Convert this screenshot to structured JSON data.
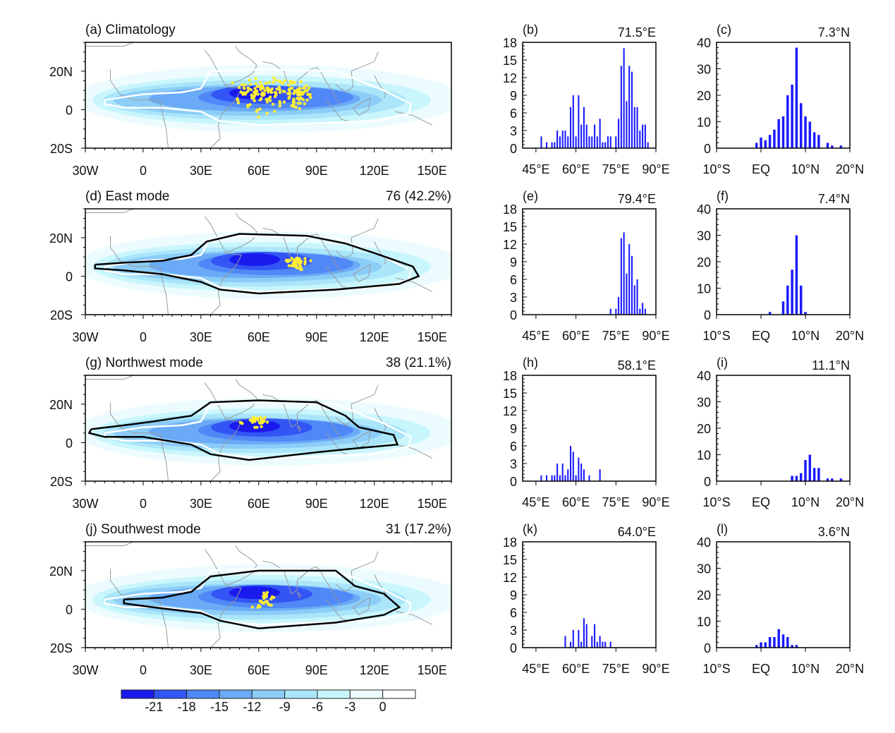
{
  "colors": {
    "bar": "#1a1aff",
    "dots": "#ffee33",
    "coast": "#999999",
    "clim_contour": "#ffffff",
    "mode_contour": "#000000"
  },
  "map_axes": {
    "lon_ticks": [
      {
        "v": -30,
        "label": "30W"
      },
      {
        "v": 0,
        "label": "0"
      },
      {
        "v": 30,
        "label": "30E"
      },
      {
        "v": 60,
        "label": "60E"
      },
      {
        "v": 90,
        "label": "90E"
      },
      {
        "v": 120,
        "label": "120E"
      },
      {
        "v": 150,
        "label": "150E"
      }
    ],
    "lat_ticks": [
      {
        "v": 20,
        "label": "20N"
      },
      {
        "v": 0,
        "label": "0"
      },
      {
        "v": -20,
        "label": "20S"
      }
    ],
    "xlim": [
      -30,
      160
    ],
    "ylim": [
      -20,
      35
    ]
  },
  "colorbar": {
    "labels": [
      "-21",
      "-18",
      "-15",
      "-12",
      "-9",
      "-6",
      "-3",
      "0"
    ],
    "colors": [
      "#1a1aee",
      "#3355f5",
      "#5088f7",
      "#6aaaf7",
      "#8ccdf8",
      "#aae5fa",
      "#c8f6fc",
      "#ecfcfe",
      "#ffffff"
    ]
  },
  "chart_data": [
    {
      "type": "heatmap",
      "title": "(a) Climatology",
      "right_label": ""
    },
    {
      "type": "bar",
      "title": "(b)",
      "right_label": "71.5°E",
      "xlim": [
        40,
        90
      ],
      "ylim": [
        0,
        18
      ],
      "yticks": [
        "0",
        "3",
        "6",
        "9",
        "12",
        "15",
        "18"
      ],
      "xticks": [
        {
          "v": 45,
          "label": "45°E"
        },
        {
          "v": 60,
          "label": "60°E"
        },
        {
          "v": 75,
          "label": "75°E"
        },
        {
          "v": 90,
          "label": "90°E"
        }
      ],
      "x": [
        47,
        49,
        51,
        52,
        53,
        54,
        55,
        56,
        57,
        58,
        59,
        60,
        61,
        62,
        63,
        64,
        65,
        66,
        67,
        68,
        69,
        70,
        71,
        72,
        73,
        75,
        76,
        77,
        78,
        79,
        80,
        81,
        82,
        83,
        84,
        85,
        86,
        87
      ],
      "values": [
        2,
        1,
        1,
        1,
        3,
        2,
        3,
        3,
        2,
        7,
        9,
        2,
        9,
        4,
        7,
        4,
        2,
        2,
        4,
        2,
        5,
        1,
        1,
        2,
        2,
        2,
        5,
        14,
        17,
        8,
        14,
        13,
        7,
        7,
        3,
        4,
        4,
        1
      ]
    },
    {
      "type": "bar",
      "title": "(c)",
      "right_label": "7.3°N",
      "xlim": [
        -10,
        20
      ],
      "ylim": [
        0,
        40
      ],
      "yticks": [
        "0",
        "10",
        "20",
        "30",
        "40"
      ],
      "xticks": [
        {
          "v": -10,
          "label": "10°S"
        },
        {
          "v": 0,
          "label": "EQ"
        },
        {
          "v": 10,
          "label": "10°N"
        },
        {
          "v": 20,
          "label": "20°N"
        }
      ],
      "x": [
        -1,
        0,
        1,
        2,
        3,
        4,
        5,
        6,
        7,
        8,
        9,
        10,
        11,
        12,
        13,
        15,
        16,
        18
      ],
      "values": [
        2,
        4,
        3,
        5,
        7,
        11,
        12,
        20,
        24,
        38,
        17,
        12,
        10,
        6,
        5,
        2,
        1,
        1
      ]
    },
    {
      "type": "heatmap",
      "title": "(d) East mode",
      "right_label": "76 (42.2%)"
    },
    {
      "type": "bar",
      "title": "(e)",
      "right_label": "79.4°E",
      "xlim": [
        40,
        90
      ],
      "ylim": [
        0,
        18
      ],
      "yticks": [
        "0",
        "3",
        "6",
        "9",
        "12",
        "15",
        "18"
      ],
      "xticks": [
        {
          "v": 45,
          "label": "45°E"
        },
        {
          "v": 60,
          "label": "60°E"
        },
        {
          "v": 75,
          "label": "75°E"
        },
        {
          "v": 90,
          "label": "90°E"
        }
      ],
      "x": [
        73,
        75,
        76,
        77,
        78,
        79,
        80,
        81,
        82,
        83,
        84,
        85,
        86
      ],
      "values": [
        1,
        1,
        3,
        13,
        14,
        7,
        12,
        10,
        5,
        6,
        1,
        2,
        1
      ]
    },
    {
      "type": "bar",
      "title": "(f)",
      "right_label": "7.4°N",
      "xlim": [
        -10,
        20
      ],
      "ylim": [
        0,
        40
      ],
      "yticks": [
        "0",
        "10",
        "20",
        "30",
        "40"
      ],
      "xticks": [
        {
          "v": -10,
          "label": "10°S"
        },
        {
          "v": 0,
          "label": "EQ"
        },
        {
          "v": 10,
          "label": "10°N"
        },
        {
          "v": 20,
          "label": "20°N"
        }
      ],
      "x": [
        2,
        5,
        6,
        7,
        8,
        9,
        10
      ],
      "values": [
        1,
        5,
        11,
        17,
        30,
        11,
        1
      ]
    },
    {
      "type": "heatmap",
      "title": "(g) Northwest mode",
      "right_label": "38 (21.1%)"
    },
    {
      "type": "bar",
      "title": "(h)",
      "right_label": "58.1°E",
      "xlim": [
        40,
        90
      ],
      "ylim": [
        0,
        18
      ],
      "yticks": [
        "0",
        "3",
        "6",
        "9",
        "12",
        "15",
        "18"
      ],
      "xticks": [
        {
          "v": 45,
          "label": "45°E"
        },
        {
          "v": 60,
          "label": "60°E"
        },
        {
          "v": 75,
          "label": "75°E"
        },
        {
          "v": 90,
          "label": "90°E"
        }
      ],
      "x": [
        47,
        49,
        51,
        52,
        53,
        54,
        55,
        56,
        57,
        58,
        59,
        60,
        61,
        62,
        63,
        65,
        69
      ],
      "values": [
        1,
        1,
        1,
        1,
        3,
        1,
        3,
        1,
        2,
        6,
        5,
        1,
        4,
        3,
        2,
        1,
        2
      ]
    },
    {
      "type": "bar",
      "title": "(i)",
      "right_label": "11.1°N",
      "xlim": [
        -10,
        20
      ],
      "ylim": [
        0,
        40
      ],
      "yticks": [
        "0",
        "10",
        "20",
        "30",
        "40"
      ],
      "xticks": [
        {
          "v": -10,
          "label": "10°S"
        },
        {
          "v": 0,
          "label": "EQ"
        },
        {
          "v": 10,
          "label": "10°N"
        },
        {
          "v": 20,
          "label": "20°N"
        }
      ],
      "x": [
        7,
        8,
        9,
        10,
        11,
        12,
        13,
        15,
        16,
        18
      ],
      "values": [
        2,
        2,
        3,
        8,
        10,
        5,
        5,
        1,
        1,
        1
      ]
    },
    {
      "type": "heatmap",
      "title": "(j) Southwest mode",
      "right_label": "31 (17.2%)"
    },
    {
      "type": "bar",
      "title": "(k)",
      "right_label": "64.0°E",
      "xlim": [
        40,
        90
      ],
      "ylim": [
        0,
        18
      ],
      "yticks": [
        "0",
        "3",
        "6",
        "9",
        "12",
        "15",
        "18"
      ],
      "xticks": [
        {
          "v": 45,
          "label": "45°E"
        },
        {
          "v": 60,
          "label": "60°E"
        },
        {
          "v": 75,
          "label": "75°E"
        },
        {
          "v": 90,
          "label": "90°E"
        }
      ],
      "x": [
        56,
        58,
        59,
        61,
        62,
        63,
        64,
        66,
        67,
        68,
        69,
        70,
        71,
        73
      ],
      "values": [
        2,
        1,
        3,
        3,
        1,
        5,
        4,
        2,
        4,
        1,
        2,
        1,
        1,
        1
      ]
    },
    {
      "type": "bar",
      "title": "(l)",
      "right_label": "3.6°N",
      "xlim": [
        -10,
        20
      ],
      "ylim": [
        0,
        40
      ],
      "yticks": [
        "0",
        "10",
        "20",
        "30",
        "40"
      ],
      "xticks": [
        {
          "v": -10,
          "label": "10°S"
        },
        {
          "v": 0,
          "label": "EQ"
        },
        {
          "v": 10,
          "label": "10°N"
        },
        {
          "v": 20,
          "label": "20°N"
        }
      ],
      "x": [
        -1,
        0,
        1,
        2,
        3,
        4,
        5,
        6,
        7,
        8
      ],
      "values": [
        1,
        2,
        2,
        4,
        4,
        7,
        5,
        4,
        1,
        1
      ]
    }
  ]
}
